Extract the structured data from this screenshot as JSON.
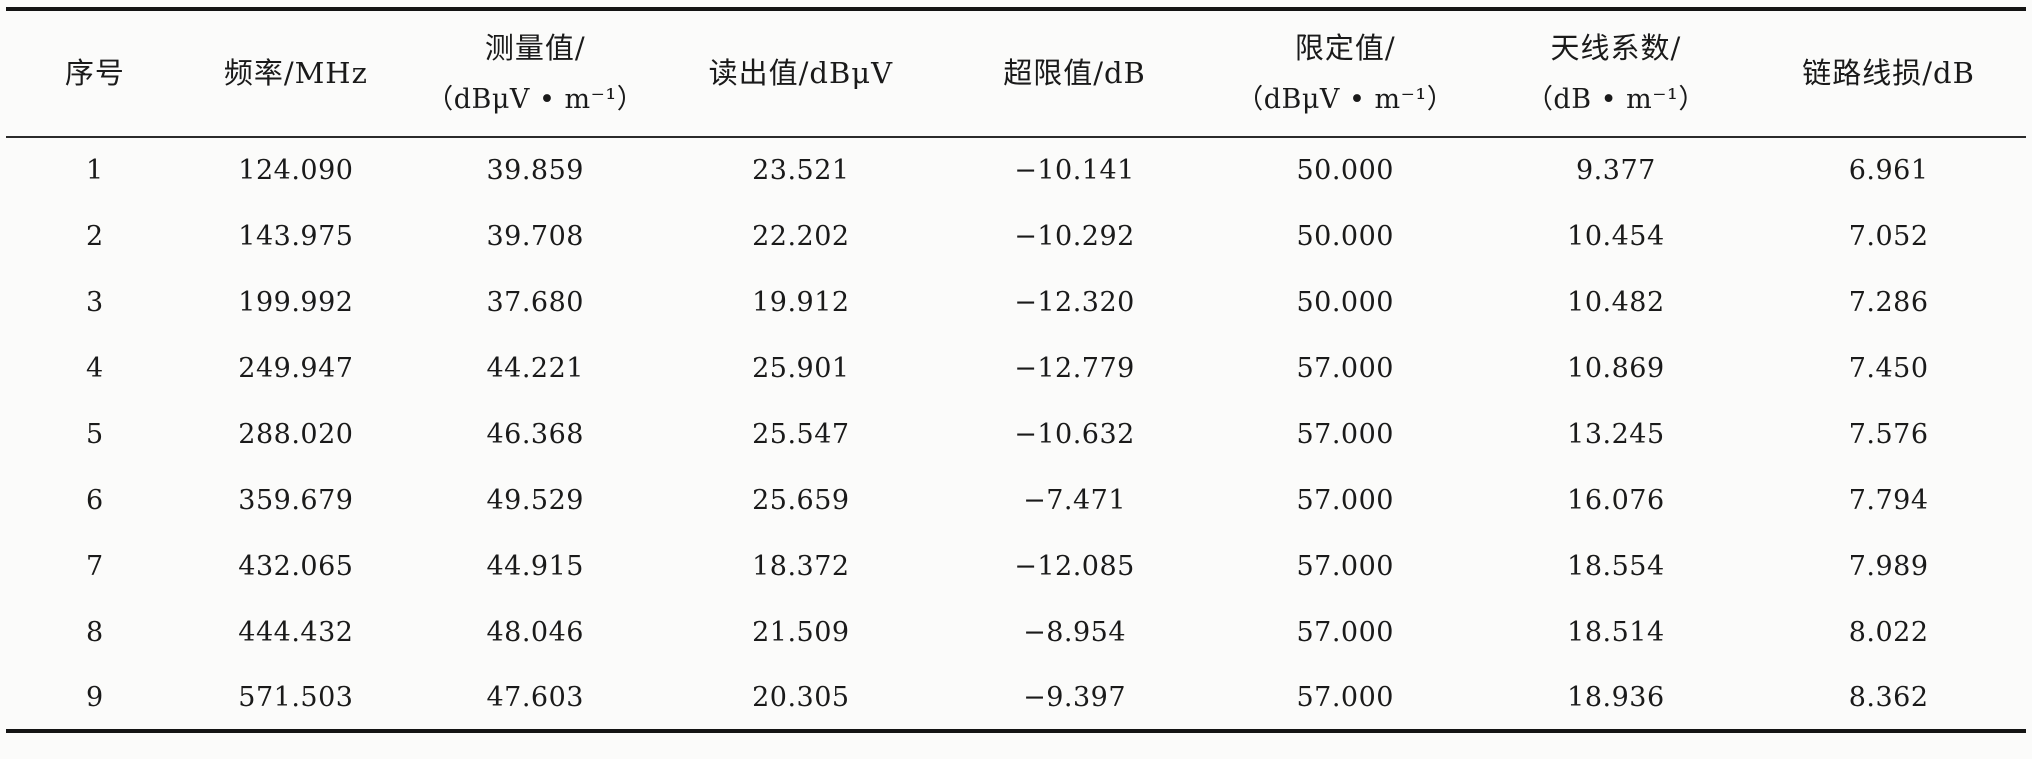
{
  "table": {
    "columns": [
      {
        "label": "序号",
        "unit": ""
      },
      {
        "label": "频率/MHz",
        "unit": ""
      },
      {
        "label": "测量值/",
        "unit": "（dBμV • m⁻¹）"
      },
      {
        "label": "读出值/dBμV",
        "unit": ""
      },
      {
        "label": "超限值/dB",
        "unit": ""
      },
      {
        "label": "限定值/",
        "unit": "（dBμV • m⁻¹）"
      },
      {
        "label": "天线系数/",
        "unit": "（dB • m⁻¹）"
      },
      {
        "label": "链路线损/dB",
        "unit": ""
      }
    ],
    "rows": [
      [
        "1",
        "124.090",
        "39.859",
        "23.521",
        "−10.141",
        "50.000",
        "9.377",
        "6.961"
      ],
      [
        "2",
        "143.975",
        "39.708",
        "22.202",
        "−10.292",
        "50.000",
        "10.454",
        "7.052"
      ],
      [
        "3",
        "199.992",
        "37.680",
        "19.912",
        "−12.320",
        "50.000",
        "10.482",
        "7.286"
      ],
      [
        "4",
        "249.947",
        "44.221",
        "25.901",
        "−12.779",
        "57.000",
        "10.869",
        "7.450"
      ],
      [
        "5",
        "288.020",
        "46.368",
        "25.547",
        "−10.632",
        "57.000",
        "13.245",
        "7.576"
      ],
      [
        "6",
        "359.679",
        "49.529",
        "25.659",
        "−7.471",
        "57.000",
        "16.076",
        "7.794"
      ],
      [
        "7",
        "432.065",
        "44.915",
        "18.372",
        "−12.085",
        "57.000",
        "18.554",
        "7.989"
      ],
      [
        "8",
        "444.432",
        "48.046",
        "21.509",
        "−8.954",
        "57.000",
        "18.514",
        "8.022"
      ],
      [
        "9",
        "571.503",
        "47.603",
        "20.305",
        "−9.397",
        "57.000",
        "18.936",
        "8.362"
      ]
    ],
    "colors": {
      "text": "#1a1a1a",
      "rule_thick": "#141414",
      "rule_thin": "#2b2b2b",
      "background": "#fbfbfa"
    }
  }
}
